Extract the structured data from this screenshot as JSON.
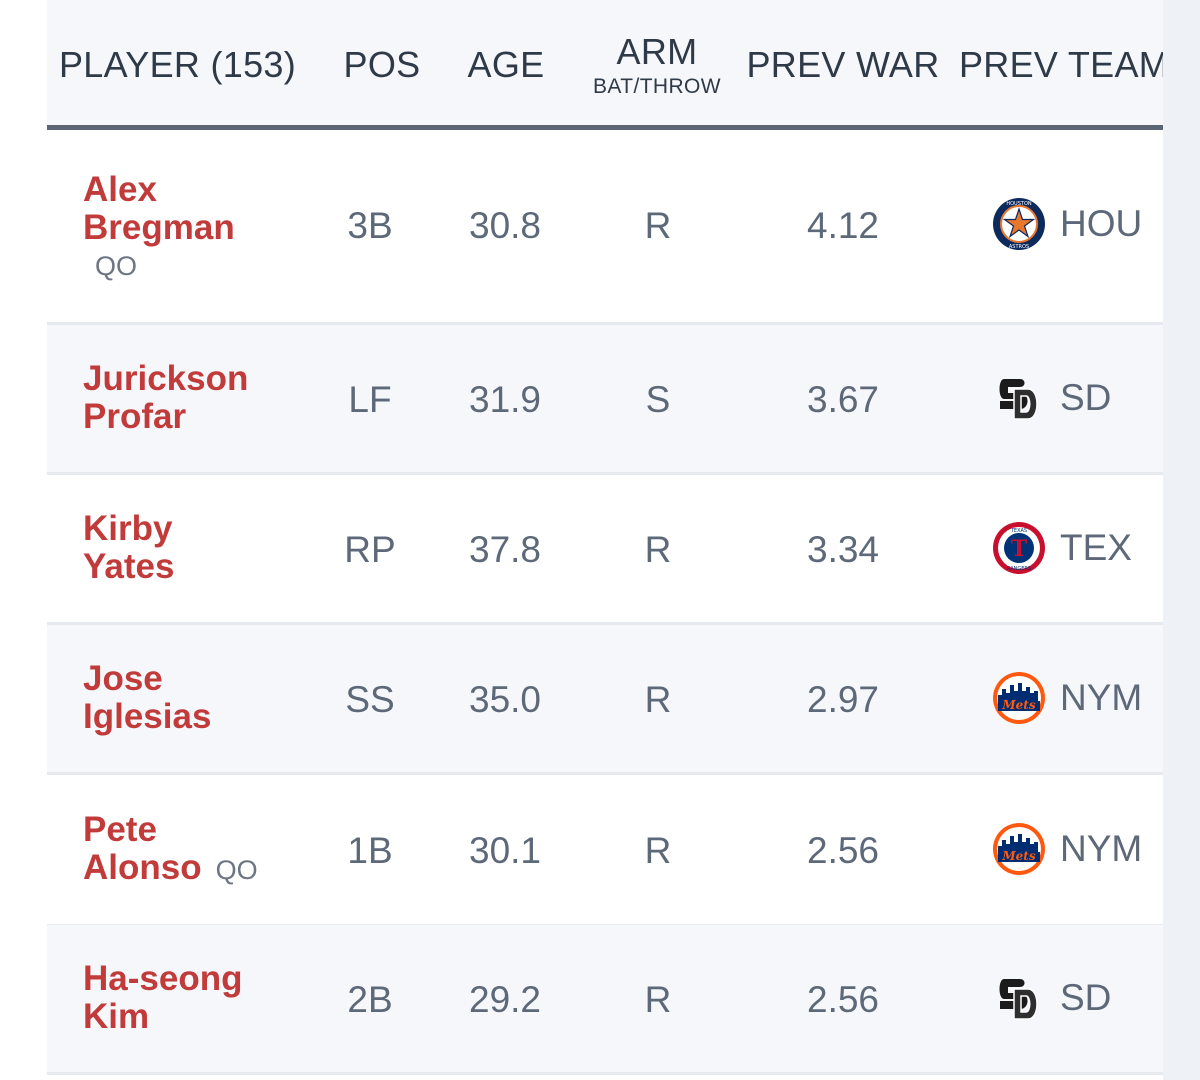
{
  "header": {
    "player": "PLAYER (153)",
    "pos": "POS",
    "age": "AGE",
    "arm": "ARM",
    "arm_sub": "BAT/THROW",
    "prev_war": "PREV WAR",
    "prev_team": "PREV TEAM"
  },
  "rows": [
    {
      "first": "Alex",
      "last": "Bregman",
      "qo": "QO",
      "pos": "3B",
      "age": "30.8",
      "arm": "R",
      "war": "4.12",
      "team": "HOU",
      "logo": "astros-logo"
    },
    {
      "first": "Jurickson",
      "last": "Profar",
      "qo": "",
      "pos": "LF",
      "age": "31.9",
      "arm": "S",
      "war": "3.67",
      "team": "SD",
      "logo": "padres-logo"
    },
    {
      "first": "Kirby",
      "last": "Yates",
      "qo": "",
      "pos": "RP",
      "age": "37.8",
      "arm": "R",
      "war": "3.34",
      "team": "TEX",
      "logo": "rangers-logo"
    },
    {
      "first": "Jose",
      "last": "Iglesias",
      "qo": "",
      "pos": "SS",
      "age": "35.0",
      "arm": "R",
      "war": "2.97",
      "team": "NYM",
      "logo": "mets-logo"
    },
    {
      "first": "Pete",
      "last": "Alonso",
      "qo": "QO",
      "pos": "1B",
      "age": "30.1",
      "arm": "R",
      "war": "2.56",
      "team": "NYM",
      "logo": "mets-logo"
    },
    {
      "first": "Ha-seong",
      "last": "Kim",
      "qo": "",
      "pos": "2B",
      "age": "29.2",
      "arm": "R",
      "war": "2.56",
      "team": "SD",
      "logo": "padres-logo"
    }
  ],
  "colors": {
    "player_name": "#c23b3b",
    "header_text": "#2f3a49",
    "cell_text": "#5d6878",
    "row_alt_bg": "#f5f7fa",
    "header_border": "#5b6675"
  }
}
